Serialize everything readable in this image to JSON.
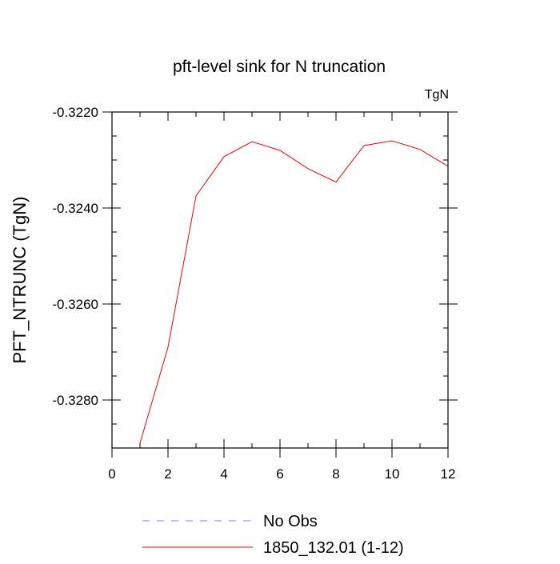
{
  "chart_data": {
    "type": "line",
    "title": "pft-level sink for N truncation",
    "units_label": "TgN",
    "ylabel": "PFT_NTRUNC  (TgN)",
    "xlabel": "",
    "xlim": [
      0,
      12
    ],
    "ylim": [
      -0.3289,
      -0.322
    ],
    "x_ticks": [
      0,
      2,
      4,
      6,
      8,
      10,
      12
    ],
    "x_tick_labels": [
      "0",
      "2",
      "4",
      "6",
      "8",
      "10",
      "12"
    ],
    "y_ticks": [
      -0.322,
      -0.324,
      -0.326,
      -0.328
    ],
    "y_tick_labels": [
      "-0.3220",
      "-0.3240",
      "-0.3260",
      "-0.3280"
    ],
    "grid": false,
    "legend_position": "bottom",
    "series": [
      {
        "name": "1850_132.01 (1-12)",
        "color": "#ff0000",
        "style": "solid",
        "x": [
          1,
          2,
          3,
          4,
          5,
          6,
          7,
          8,
          9,
          10,
          11,
          12
        ],
        "values": [
          -0.3289,
          -0.3269,
          -0.32375,
          -0.32293,
          -0.32262,
          -0.3228,
          -0.32318,
          -0.32346,
          -0.3227,
          -0.3226,
          -0.32278,
          -0.32313
        ]
      }
    ],
    "legend": [
      {
        "label": "No Obs",
        "color": "#8080ff",
        "style": "dashed"
      },
      {
        "label": "1850_132.01 (1-12)",
        "color": "#ff0000",
        "style": "solid"
      }
    ]
  }
}
